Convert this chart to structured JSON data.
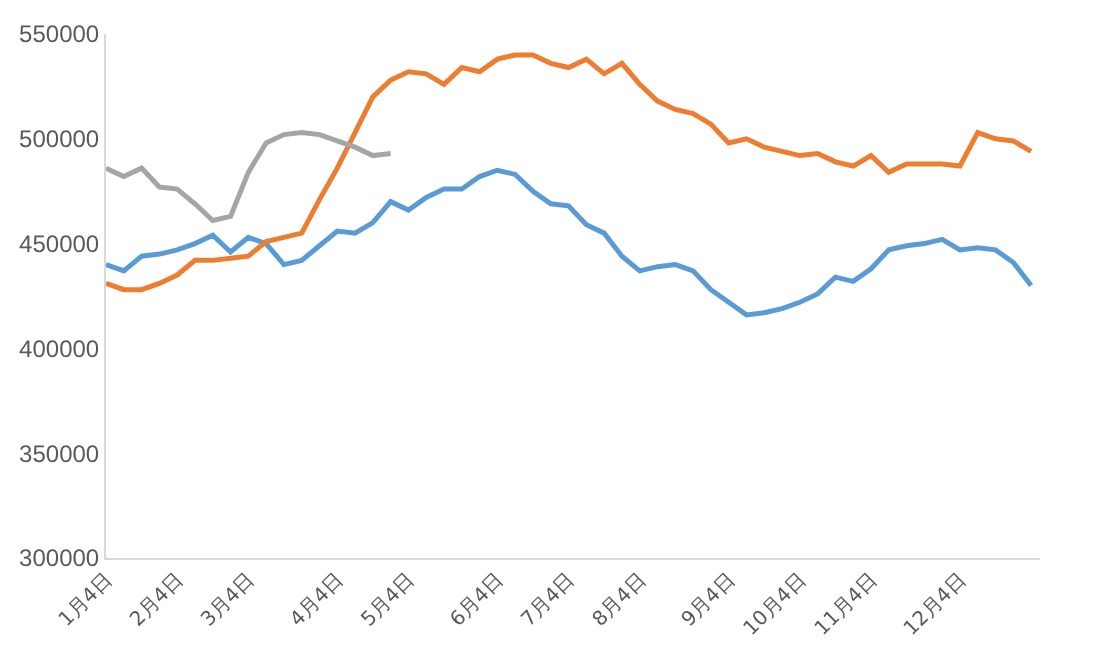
{
  "chart_data": {
    "type": "line",
    "categories": [
      "1月4日",
      null,
      null,
      null,
      "2月4日",
      null,
      null,
      null,
      "3月4日",
      null,
      null,
      null,
      null,
      "4月4日",
      null,
      null,
      null,
      "5月4日",
      null,
      null,
      null,
      null,
      "6月4日",
      null,
      null,
      null,
      "7月4日",
      null,
      null,
      null,
      "8月4日",
      null,
      null,
      null,
      null,
      "9月4日",
      null,
      null,
      null,
      "10月4日",
      null,
      null,
      null,
      "11月4日",
      null,
      null,
      null,
      null,
      "12月4日",
      null,
      null,
      null,
      null
    ],
    "series": [
      {
        "color": "#5b9bd5",
        "values": [
          440000,
          437000,
          444000,
          445000,
          447000,
          450000,
          454000,
          446000,
          453000,
          450000,
          440000,
          442000,
          449000,
          456000,
          455000,
          460000,
          470000,
          466000,
          472000,
          476000,
          476000,
          482000,
          485000,
          483000,
          475000,
          469000,
          468000,
          459000,
          455000,
          444000,
          437000,
          439000,
          440000,
          437000,
          428000,
          422000,
          416000,
          417000,
          419000,
          422000,
          426000,
          434000,
          432000,
          438000,
          447000,
          449000,
          450000,
          452000,
          447000,
          448000,
          447000,
          441000,
          430000
        ]
      },
      {
        "color": "#ed7d31",
        "values": [
          431000,
          428000,
          428000,
          431000,
          435000,
          442000,
          442000,
          443000,
          444000,
          451000,
          453000,
          455000,
          471000,
          486000,
          503000,
          520000,
          528000,
          532000,
          531000,
          526000,
          534000,
          532000,
          538000,
          540000,
          540000,
          536000,
          534000,
          538000,
          531000,
          536000,
          526000,
          518000,
          514000,
          512000,
          507000,
          498000,
          500000,
          496000,
          494000,
          492000,
          493000,
          489000,
          487000,
          492000,
          484000,
          488000,
          488000,
          488000,
          487000,
          503000,
          500000,
          499000,
          494000
        ]
      },
      {
        "color": "#a5a5a5",
        "values": [
          486000,
          482000,
          486000,
          477000,
          476000,
          469000,
          461000,
          463000,
          484000,
          498000,
          502000,
          503000,
          502000,
          499000,
          496000,
          492000,
          493000,
          null,
          null,
          null,
          null,
          null,
          null,
          null,
          null,
          null,
          null,
          null,
          null,
          null,
          null,
          null,
          null,
          null,
          null,
          null,
          null,
          null,
          null,
          null,
          null,
          null,
          null,
          null,
          null,
          null,
          null,
          null,
          null,
          null,
          null,
          null,
          null
        ]
      }
    ],
    "ylim": [
      300000,
      550000
    ],
    "yticks": [
      300000,
      350000,
      400000,
      450000,
      500000,
      550000
    ],
    "grid": false,
    "marker": "none",
    "line_style": "solid"
  }
}
